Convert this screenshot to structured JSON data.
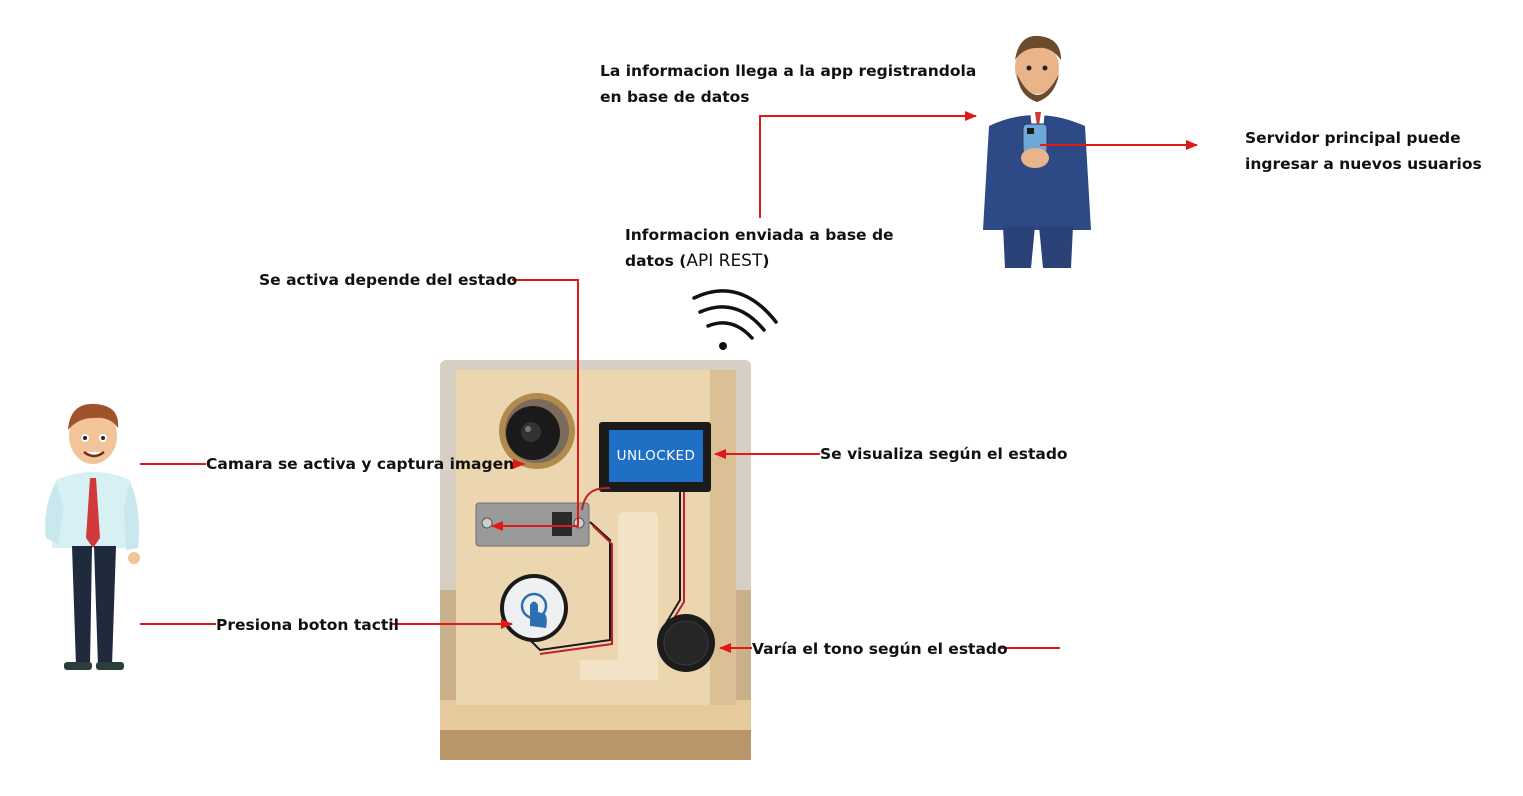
{
  "labels": {
    "app_info": "La informacion llega a la app registrandola",
    "app_info_2": "en base de datos",
    "server": "Servidor principal puede",
    "server_2": "ingresar a nuevos usuarios",
    "sent_info": "Informacion enviada a  base de",
    "sent_info_2": "datos (",
    "sent_info_api": "API REST",
    "sent_info_close": ")",
    "activate": "Se activa depende del estado",
    "camera": "Camara se activa y captura imagen",
    "display": "Se visualiza según el estado",
    "touch": "Presiona boton tactil",
    "buzzer": "Varía el tono según el estado"
  },
  "device": {
    "screen_text": "UNLOCKED",
    "screen_color": "#1f6fc4"
  },
  "colors": {
    "arrow": "#e01818",
    "wood": "#e9d1a8",
    "wood_dark": "#d6b98a"
  },
  "icons": {
    "wifi": "wifi-icon",
    "touch": "touch-icon"
  }
}
